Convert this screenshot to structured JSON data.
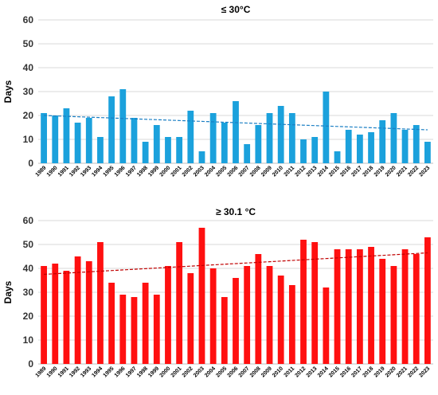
{
  "chart_data": [
    {
      "type": "bar",
      "title": "≤ 30°C",
      "ylabel": "Days",
      "xlabel": "",
      "ylim": [
        0,
        60
      ],
      "yticks": [
        0,
        10,
        20,
        30,
        40,
        50,
        60
      ],
      "grid": true,
      "color": "#1ba1dc",
      "trend_color": "#1b7fc4",
      "trend": [
        20,
        14
      ],
      "categories": [
        "1989",
        "1990",
        "1991",
        "1992",
        "1993",
        "1994",
        "1995",
        "1996",
        "1997",
        "1998",
        "1999",
        "2000",
        "2001",
        "2002",
        "2003",
        "2004",
        "2005",
        "2006",
        "2007",
        "2008",
        "2009",
        "2010",
        "2011",
        "2012",
        "2013",
        "2014",
        "2015",
        "2016",
        "2017",
        "2018",
        "2019",
        "2020",
        "2021",
        "2022",
        "2023"
      ],
      "values": [
        21,
        20,
        23,
        17,
        19,
        11,
        28,
        31,
        19,
        9,
        16,
        11,
        11,
        22,
        5,
        21,
        17,
        26,
        8,
        16,
        21,
        24,
        21,
        10,
        11,
        30,
        5,
        14,
        12,
        13,
        18,
        21,
        14,
        16,
        9
      ]
    },
    {
      "type": "bar",
      "title": "≥ 30.1 °C",
      "ylabel": "Days",
      "xlabel": "",
      "ylim": [
        0,
        60
      ],
      "yticks": [
        0,
        10,
        20,
        30,
        40,
        50,
        60
      ],
      "grid": true,
      "color": "#ff1010",
      "trend_color": "#c00000",
      "trend": [
        37.5,
        46.5
      ],
      "categories": [
        "1989",
        "1990",
        "1991",
        "1992",
        "1993",
        "1994",
        "1995",
        "1996",
        "1997",
        "1998",
        "1999",
        "2000",
        "2001",
        "2002",
        "2003",
        "2004",
        "2005",
        "2006",
        "2007",
        "2008",
        "2009",
        "2010",
        "2011",
        "2012",
        "2013",
        "2014",
        "2015",
        "2016",
        "2017",
        "2018",
        "2019",
        "2020",
        "2021",
        "2022",
        "2023"
      ],
      "values": [
        41,
        42,
        39,
        45,
        43,
        51,
        34,
        29,
        28,
        34,
        29,
        41,
        51,
        38,
        57,
        40,
        28,
        36,
        41,
        46,
        41,
        37,
        33,
        52,
        51,
        32,
        48,
        48,
        48,
        49,
        44,
        41,
        48,
        46,
        53
      ]
    }
  ]
}
